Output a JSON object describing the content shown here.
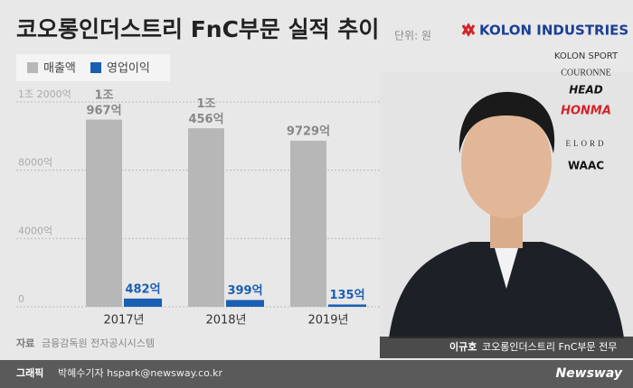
{
  "chart_data": {
    "type": "bar",
    "title": "코오롱인더스트리 FnC부문 실적 추이",
    "unit": "단위: 원",
    "categories": [
      "2017년",
      "2018년",
      "2019년"
    ],
    "series": [
      {
        "name": "매출액",
        "color": "#b7b7b7",
        "values": [
          10967,
          10456,
          9729
        ],
        "value_labels": [
          "1조 967억",
          "1조 456억",
          "9729억"
        ]
      },
      {
        "name": "영업이익",
        "color": "#1a5fb4",
        "values": [
          482,
          399,
          135
        ],
        "value_labels": [
          "482억",
          "399억",
          "135억"
        ]
      }
    ],
    "ylim": [
      0,
      12000
    ],
    "yticks": [
      0,
      {
        "value": 4000,
        "label": "4000억"
      },
      {
        "value": 8000,
        "label": "8000억"
      },
      {
        "value": 12000,
        "label": "1조 2000억"
      }
    ],
    "grid": true,
    "source_label": "자료",
    "source": "금융감독원 전자공시시스템"
  },
  "brands": [
    "KOLON INDUSTRIES",
    "KOLON SPORT",
    "COURONNE",
    "HEAD",
    "HONMA",
    "ELORD",
    "WAAC"
  ],
  "photo_caption": {
    "name": "이규호",
    "title": "코오롱인더스트리 FnC부문 전무"
  },
  "footer": {
    "label": "그래픽",
    "author": "박혜수기자 hspark@newsway.co.kr",
    "brand": "Newsway"
  }
}
